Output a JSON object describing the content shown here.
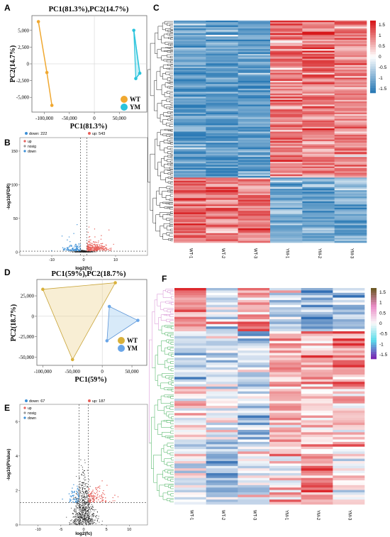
{
  "panels": {
    "A": "A",
    "B": "B",
    "C": "C",
    "D": "D",
    "E": "E",
    "F": "F"
  },
  "colors": {
    "wt_orange": "#f0a830",
    "ym_cyan": "#29c3dc",
    "wt_gold": "#d9b13a",
    "ym_blue": "#6aa6e8",
    "up_red": "#e8605a",
    "down_blue": "#3b8fd6",
    "nosig": "#222222",
    "hm_red": "#d7191c",
    "hm_blue": "#2c7bb6"
  },
  "chart_data": [
    {
      "panel": "A",
      "type": "scatter",
      "title": "PC1(81.3%),PC2(14.7%)",
      "xlabel": "PC1(81.3%)",
      "ylabel": "PC2(14.7%)",
      "xlim": [
        -125000,
        105000
      ],
      "ylim": [
        -7200,
        7200
      ],
      "xticks": [
        -100000,
        -50000,
        0,
        50000
      ],
      "xtick_labels": [
        "-100,000",
        "-50,000",
        "0",
        "50,000"
      ],
      "yticks": [
        5000,
        2500,
        0,
        -2500,
        -5000
      ],
      "ytick_labels": [
        "5,000",
        "2,500",
        "0",
        "-2,500",
        "-5,000"
      ],
      "series": [
        {
          "name": "WT",
          "points": [
            [
              -112000,
              6300
            ],
            [
              -95000,
              -1300
            ],
            [
              -85000,
              -6200
            ]
          ]
        },
        {
          "name": "YM",
          "points": [
            [
              79000,
              5000
            ],
            [
              83000,
              -2200
            ],
            [
              91000,
              -1400
            ]
          ]
        }
      ],
      "legend": "bottom-right"
    },
    {
      "panel": "B",
      "type": "scatter",
      "title": "",
      "xlabel": "log2(fc)",
      "ylabel": "-log10(FDR)",
      "xlim": [
        -20,
        20
      ],
      "ylim": [
        -5,
        170
      ],
      "xticks": [
        -10,
        0,
        10
      ],
      "xtick_labels": [
        "-10",
        "0",
        "10"
      ],
      "yticks": [
        0,
        50,
        100,
        150
      ],
      "ytick_labels": [
        "0",
        "50",
        "100",
        "150"
      ],
      "counts": {
        "down": "down: 222",
        "up": "up: 543"
      },
      "legend_items": [
        "up",
        "nosig",
        "down"
      ],
      "threshold_x": [
        -1,
        1
      ],
      "threshold_y": 1.3
    },
    {
      "panel": "C",
      "type": "heatmap",
      "columns": [
        "WT-1",
        "WT-2",
        "WT-3",
        "YM-1",
        "YM-2",
        "YM-3"
      ],
      "colorbar_ticks": [
        "1.5",
        "1",
        "0.5",
        "0",
        "-0.5",
        "-1",
        "-1.5"
      ],
      "colorbar_values": [
        1.5,
        1,
        0.5,
        0,
        -0.5,
        -1,
        -1.5
      ],
      "clusters": [
        {
          "rows_fraction": 0.71,
          "pattern": [
            -1.2,
            -1.3,
            -1.3,
            0.9,
            1.0,
            0.9
          ]
        },
        {
          "rows_fraction": 0.29,
          "pattern": [
            1.0,
            0.9,
            0.9,
            -1.1,
            -1.2,
            -1.1
          ]
        }
      ]
    },
    {
      "panel": "D",
      "type": "scatter",
      "title": "PC1(59%),PC2(18.7%)",
      "xlabel": "PC1(59%)",
      "ylabel": "PC2(18.7%)",
      "xlim": [
        -110000,
        75000
      ],
      "ylim": [
        -60000,
        45000
      ],
      "xticks": [
        -100000,
        -50000,
        0,
        50000
      ],
      "xtick_labels": [
        "-100,000",
        "-50,000",
        "0",
        "50,000"
      ],
      "yticks": [
        25000,
        0,
        -25000,
        -50000
      ],
      "ytick_labels": [
        "25,000",
        "0",
        "-25,000",
        "-50,000"
      ],
      "series": [
        {
          "name": "WT",
          "points": [
            [
              -100000,
              33000
            ],
            [
              22000,
              41000
            ],
            [
              -50000,
              -53000
            ]
          ]
        },
        {
          "name": "YM",
          "points": [
            [
              12000,
              12000
            ],
            [
              60000,
              -5000
            ],
            [
              8000,
              -30000
            ]
          ]
        }
      ],
      "legend": "bottom-right"
    },
    {
      "panel": "E",
      "type": "scatter",
      "title": "",
      "xlabel": "log2(fc)",
      "ylabel": "-log10(PValue)",
      "xlim": [
        -14,
        14
      ],
      "ylim": [
        0,
        7
      ],
      "xticks": [
        -10,
        -5,
        0,
        5,
        10
      ],
      "xtick_labels": [
        "-10",
        "-5",
        "0",
        "5",
        "10"
      ],
      "yticks": [
        0,
        2,
        4,
        6
      ],
      "ytick_labels": [
        "0",
        "2",
        "4",
        "6"
      ],
      "counts": {
        "down": "down: 67",
        "up": "up: 187"
      },
      "legend_items": [
        "up",
        "nosig",
        "down"
      ],
      "threshold_x": [
        -1,
        1
      ],
      "threshold_y": 1.3
    },
    {
      "panel": "F",
      "type": "heatmap",
      "columns": [
        "WT-1",
        "WT-2",
        "WT-3",
        "YM-1",
        "YM-2",
        "YM-3"
      ],
      "colorbar_ticks": [
        "1.5",
        "1",
        "0.5",
        "0",
        "-0.5",
        "-1",
        "-1.5"
      ],
      "colorbar_values": [
        1.5,
        1,
        0.5,
        0,
        -0.5,
        -1,
        -1.5
      ]
    }
  ]
}
